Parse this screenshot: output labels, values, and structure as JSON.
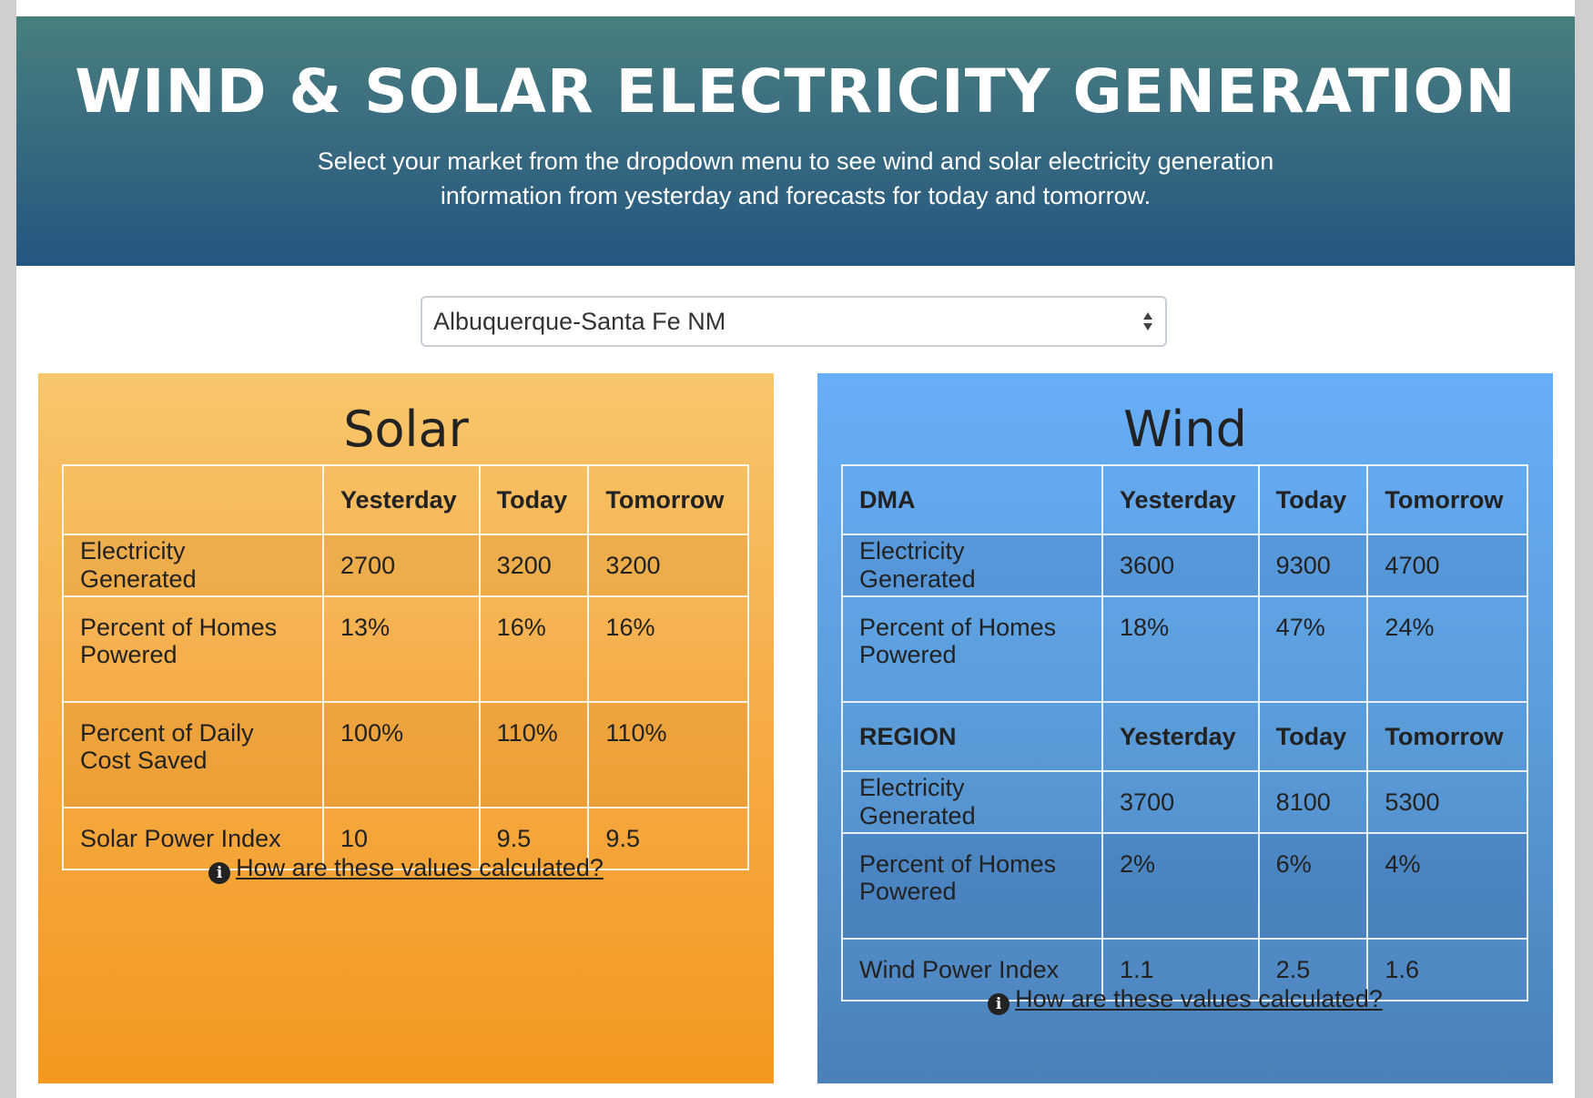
{
  "header": {
    "title": "WIND & SOLAR ELECTRICITY GENERATION",
    "subtitle_line1": "Select your market from the dropdown menu to see wind and solar electricity generation",
    "subtitle_line2": "information from yesterday and forecasts for today and tomorrow."
  },
  "market_select": {
    "selected": "Albuquerque-Santa Fe NM"
  },
  "solar": {
    "title": "Solar",
    "columns": [
      "",
      "Yesterday",
      "Today",
      "Tomorrow"
    ],
    "rows": [
      {
        "label": "Electricity Generated",
        "yesterday": "2700",
        "today": "3200",
        "tomorrow": "3200"
      },
      {
        "label": "Percent of Homes Powered",
        "yesterday": "13%",
        "today": "16%",
        "tomorrow": "16%"
      },
      {
        "label": "Percent of Daily Cost Saved",
        "yesterday": "100%",
        "today": "110%",
        "tomorrow": "110%"
      },
      {
        "label": "Solar Power Index",
        "yesterday": "10",
        "today": "9.5",
        "tomorrow": "9.5"
      }
    ],
    "calc_link": "How are these values calculated?"
  },
  "wind": {
    "title": "Wind",
    "dma_columns": [
      "DMA",
      "Yesterday",
      "Today",
      "Tomorrow"
    ],
    "dma_rows": [
      {
        "label": "Electricity Generated",
        "yesterday": "3600",
        "today": "9300",
        "tomorrow": "4700"
      },
      {
        "label": "Percent of Homes Powered",
        "yesterday": "18%",
        "today": "47%",
        "tomorrow": "24%"
      }
    ],
    "region_columns": [
      "REGION",
      "Yesterday",
      "Today",
      "Tomorrow"
    ],
    "region_rows": [
      {
        "label": "Electricity Generated",
        "yesterday": "3700",
        "today": "8100",
        "tomorrow": "5300"
      },
      {
        "label": "Percent of Homes Powered",
        "yesterday": "2%",
        "today": "6%",
        "tomorrow": "4%"
      },
      {
        "label": "Wind Power Index",
        "yesterday": "1.1",
        "today": "2.5",
        "tomorrow": "1.6"
      }
    ],
    "calc_link": "How are these values calculated?"
  }
}
